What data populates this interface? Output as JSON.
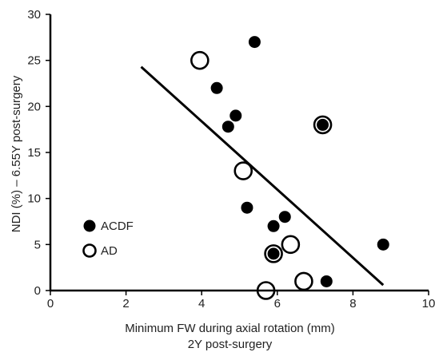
{
  "chart_data": {
    "type": "scatter",
    "xlabel": "Minimum FW during axial rotation (mm)",
    "xlabel_line2": "2Y post-surgery",
    "ylabel": "NDI (%) – 6.55Y post-surgery",
    "xlim": [
      0,
      10
    ],
    "ylim": [
      0,
      30
    ],
    "xticks": [
      "0",
      "2",
      "4",
      "6",
      "8",
      "10"
    ],
    "yticks": [
      "0",
      "5",
      "10",
      "15",
      "20",
      "25",
      "30"
    ],
    "grid": false,
    "legend_position": "left-bottom",
    "series": [
      {
        "name": "ACDF",
        "marker": "filled-circle",
        "color": "#000000",
        "points": [
          {
            "x": 5.4,
            "y": 27
          },
          {
            "x": 4.4,
            "y": 22
          },
          {
            "x": 4.9,
            "y": 19
          },
          {
            "x": 4.7,
            "y": 17.8
          },
          {
            "x": 7.2,
            "y": 18
          },
          {
            "x": 5.2,
            "y": 9
          },
          {
            "x": 6.2,
            "y": 8
          },
          {
            "x": 5.9,
            "y": 7
          },
          {
            "x": 5.9,
            "y": 4
          },
          {
            "x": 8.8,
            "y": 5
          },
          {
            "x": 7.3,
            "y": 1
          }
        ]
      },
      {
        "name": "AD",
        "marker": "open-circle",
        "color": "#000000",
        "points": [
          {
            "x": 3.95,
            "y": 25
          },
          {
            "x": 7.2,
            "y": 18
          },
          {
            "x": 5.1,
            "y": 13
          },
          {
            "x": 6.35,
            "y": 5
          },
          {
            "x": 5.9,
            "y": 4
          },
          {
            "x": 6.7,
            "y": 1
          },
          {
            "x": 5.7,
            "y": 0
          }
        ]
      }
    ],
    "trend_line": {
      "x": [
        2.4,
        8.8
      ],
      "y": [
        24.3,
        0.6
      ]
    }
  }
}
